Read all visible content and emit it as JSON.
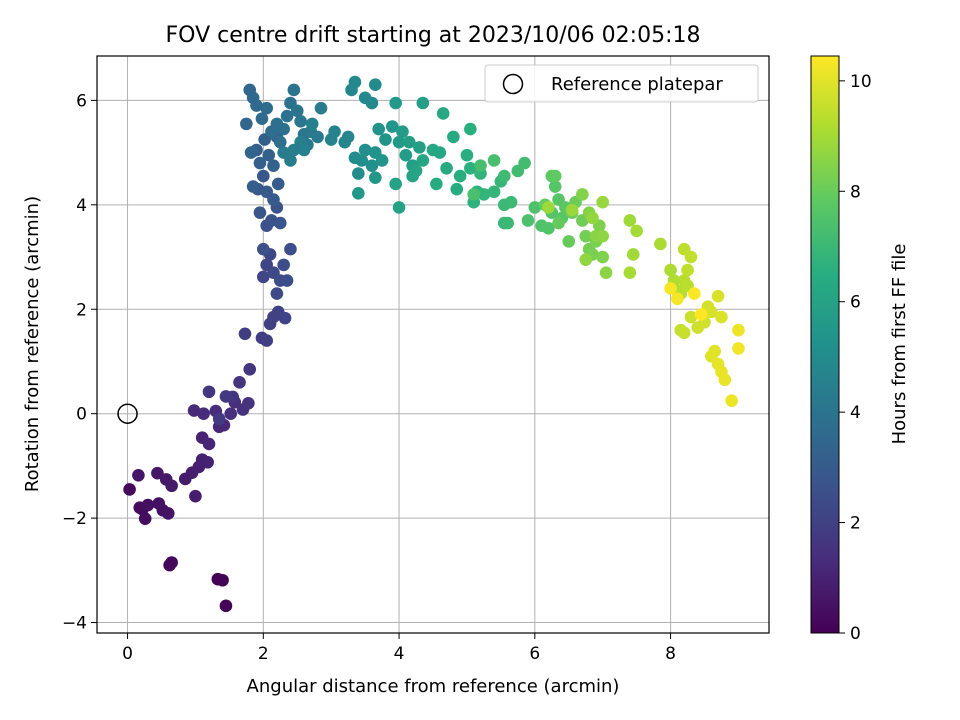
{
  "chart_data": {
    "type": "scatter",
    "title": "FOV centre drift starting at 2023/10/06 02:05:18",
    "xlabel": "Angular distance from reference (arcmin)",
    "ylabel": "Rotation from reference (arcmin)",
    "xlim": [
      -0.45,
      9.45
    ],
    "ylim": [
      -4.2,
      6.85
    ],
    "xticks": [
      0,
      2,
      4,
      6,
      8
    ],
    "yticks": [
      -4,
      -2,
      0,
      2,
      4,
      6
    ],
    "xtick_labels": [
      "0",
      "2",
      "4",
      "6",
      "8"
    ],
    "ytick_labels": [
      "−4",
      "−2",
      "0",
      "2",
      "4",
      "6"
    ],
    "grid": true,
    "legend": {
      "location": "upper-right",
      "entries": [
        "Reference platepar"
      ]
    },
    "reference_point": {
      "x": 0,
      "y": 0,
      "marker": "open-circle"
    },
    "colorbar": {
      "label": "Hours from first FF file",
      "colormap": "viridis",
      "range": [
        0,
        10.45
      ],
      "ticks": [
        0,
        2,
        4,
        6,
        8,
        10
      ],
      "tick_labels": [
        "0",
        "2",
        "4",
        "6",
        "8",
        "10"
      ]
    },
    "series": [
      {
        "points": [
          [
            1.33,
            -3.17
          ],
          [
            1.4,
            -3.19
          ],
          [
            1.45,
            -3.68
          ],
          [
            0.62,
            -2.9
          ],
          [
            0.65,
            -2.85
          ],
          [
            0.03,
            -1.45
          ],
          [
            0.18,
            -1.8
          ],
          [
            0.22,
            -1.83
          ],
          [
            0.26,
            -2.01
          ],
          [
            0.3,
            -1.75
          ],
          [
            0.46,
            -1.72
          ],
          [
            0.52,
            -1.85
          ],
          [
            0.6,
            -1.91
          ],
          [
            0.16,
            -1.18
          ],
          [
            0.44,
            -1.14
          ],
          [
            0.57,
            -1.26
          ],
          [
            0.65,
            -1.38
          ],
          [
            0.85,
            -1.25
          ],
          [
            0.95,
            -1.13
          ],
          [
            1.0,
            -1.58
          ],
          [
            1.05,
            -1.02
          ],
          [
            1.1,
            -0.88
          ],
          [
            1.18,
            -0.93
          ],
          [
            1.1,
            -0.46
          ],
          [
            1.2,
            -0.58
          ],
          [
            1.35,
            -0.25
          ],
          [
            1.42,
            -0.22
          ],
          [
            0.98,
            0.06
          ],
          [
            1.12,
            0.0
          ],
          [
            1.3,
            0.05
          ],
          [
            1.52,
            0.0
          ],
          [
            1.58,
            0.22
          ],
          [
            1.7,
            0.08
          ],
          [
            1.78,
            0.2
          ],
          [
            1.55,
            0.32
          ],
          [
            1.65,
            0.6
          ],
          [
            1.8,
            0.85
          ],
          [
            1.2,
            0.42
          ],
          [
            1.45,
            0.33
          ],
          [
            1.35,
            -0.1
          ],
          [
            1.73,
            1.53
          ],
          [
            1.98,
            1.45
          ],
          [
            2.05,
            1.4
          ],
          [
            2.1,
            1.72
          ],
          [
            2.15,
            1.85
          ],
          [
            2.22,
            1.95
          ],
          [
            2.32,
            1.83
          ],
          [
            2.0,
            2.62
          ],
          [
            2.05,
            2.85
          ],
          [
            2.1,
            3.05
          ],
          [
            2.15,
            2.7
          ],
          [
            2.2,
            2.3
          ],
          [
            2.25,
            2.55
          ],
          [
            2.3,
            2.85
          ],
          [
            2.35,
            2.55
          ],
          [
            2.4,
            3.15
          ],
          [
            2.0,
            3.15
          ],
          [
            2.05,
            3.6
          ],
          [
            2.12,
            3.7
          ],
          [
            2.2,
            3.95
          ],
          [
            2.25,
            3.65
          ],
          [
            1.95,
            3.85
          ],
          [
            1.92,
            4.3
          ],
          [
            2.0,
            4.55
          ],
          [
            2.05,
            4.25
          ],
          [
            2.15,
            4.1
          ],
          [
            2.22,
            4.4
          ],
          [
            1.85,
            4.35
          ],
          [
            1.9,
            5.05
          ],
          [
            1.95,
            4.8
          ],
          [
            2.02,
            5.25
          ],
          [
            2.08,
            4.95
          ],
          [
            2.15,
            4.75
          ],
          [
            2.2,
            5.3
          ],
          [
            1.82,
            5.0
          ],
          [
            1.75,
            5.55
          ],
          [
            1.8,
            6.2
          ],
          [
            1.85,
            6.05
          ],
          [
            1.9,
            5.9
          ],
          [
            1.98,
            5.65
          ],
          [
            2.05,
            5.85
          ],
          [
            2.12,
            5.4
          ],
          [
            2.2,
            5.55
          ],
          [
            2.25,
            5.2
          ],
          [
            2.3,
            5.45
          ],
          [
            2.35,
            5.7
          ],
          [
            2.4,
            5.95
          ],
          [
            2.45,
            6.2
          ],
          [
            2.5,
            5.8
          ],
          [
            2.55,
            5.6
          ],
          [
            2.6,
            5.35
          ],
          [
            2.65,
            5.15
          ],
          [
            2.7,
            5.4
          ],
          [
            2.8,
            5.3
          ],
          [
            2.85,
            5.85
          ],
          [
            2.3,
            5.0
          ],
          [
            2.4,
            4.85
          ],
          [
            2.45,
            5.05
          ],
          [
            2.55,
            5.2
          ],
          [
            2.6,
            5.05
          ],
          [
            2.72,
            5.55
          ],
          [
            3.0,
            5.25
          ],
          [
            3.05,
            5.4
          ],
          [
            3.2,
            5.2
          ],
          [
            3.25,
            5.3
          ],
          [
            3.3,
            6.2
          ],
          [
            3.35,
            6.35
          ],
          [
            3.5,
            6.05
          ],
          [
            3.6,
            5.95
          ],
          [
            3.65,
            6.3
          ],
          [
            3.35,
            4.9
          ],
          [
            3.4,
            4.6
          ],
          [
            3.45,
            4.85
          ],
          [
            3.5,
            5.05
          ],
          [
            3.6,
            4.75
          ],
          [
            3.65,
            5.0
          ],
          [
            3.7,
            5.45
          ],
          [
            3.75,
            4.85
          ],
          [
            3.8,
            5.25
          ],
          [
            3.9,
            5.5
          ],
          [
            3.4,
            4.22
          ],
          [
            3.65,
            4.52
          ],
          [
            3.95,
            5.95
          ],
          [
            4.0,
            5.2
          ],
          [
            4.05,
            5.4
          ],
          [
            4.1,
            4.95
          ],
          [
            4.15,
            5.2
          ],
          [
            4.2,
            4.75
          ],
          [
            4.3,
            5.1
          ],
          [
            4.35,
            5.95
          ],
          [
            3.95,
            4.4
          ],
          [
            4.0,
            3.95
          ],
          [
            4.2,
            4.55
          ],
          [
            4.25,
            4.65
          ],
          [
            4.35,
            4.85
          ],
          [
            4.5,
            5.05
          ],
          [
            4.6,
            5.0
          ],
          [
            4.65,
            5.75
          ],
          [
            4.7,
            4.7
          ],
          [
            4.8,
            5.3
          ],
          [
            4.55,
            4.4
          ],
          [
            4.85,
            4.3
          ],
          [
            4.9,
            4.55
          ],
          [
            5.0,
            4.95
          ],
          [
            5.05,
            5.45
          ],
          [
            5.05,
            4.7
          ],
          [
            5.1,
            4.05
          ],
          [
            5.15,
            4.25
          ],
          [
            5.2,
            4.6
          ],
          [
            5.25,
            4.2
          ],
          [
            5.4,
            4.25
          ],
          [
            5.5,
            4.45
          ],
          [
            5.55,
            3.65
          ],
          [
            5.55,
            4.0
          ],
          [
            5.6,
            3.65
          ],
          [
            5.65,
            4.05
          ],
          [
            5.55,
            4.55
          ],
          [
            5.75,
            4.65
          ],
          [
            5.85,
            4.8
          ],
          [
            5.2,
            4.75
          ],
          [
            5.4,
            4.85
          ],
          [
            5.1,
            4.2
          ],
          [
            5.9,
            3.7
          ],
          [
            6.0,
            3.95
          ],
          [
            6.1,
            3.6
          ],
          [
            6.2,
            3.55
          ],
          [
            6.25,
            3.85
          ],
          [
            6.3,
            4.35
          ],
          [
            6.35,
            4.1
          ],
          [
            6.4,
            3.75
          ],
          [
            6.45,
            3.95
          ],
          [
            6.25,
            4.55
          ],
          [
            6.3,
            4.55
          ],
          [
            6.15,
            4.0
          ],
          [
            6.35,
            3.65
          ],
          [
            6.5,
            3.3
          ],
          [
            6.55,
            3.85
          ],
          [
            6.6,
            4.05
          ],
          [
            6.7,
            3.7
          ],
          [
            6.75,
            3.4
          ],
          [
            6.8,
            3.15
          ],
          [
            6.85,
            3.05
          ],
          [
            6.9,
            3.3
          ],
          [
            6.95,
            3.6
          ],
          [
            7.0,
            3.0
          ],
          [
            6.7,
            4.2
          ],
          [
            6.8,
            3.85
          ],
          [
            6.9,
            3.4
          ],
          [
            7.05,
            2.7
          ],
          [
            7.0,
            3.4
          ],
          [
            6.75,
            2.95
          ],
          [
            6.85,
            3.75
          ],
          [
            7.0,
            4.05
          ],
          [
            6.55,
            3.9
          ],
          [
            6.2,
            3.95
          ],
          [
            7.4,
            3.7
          ],
          [
            7.45,
            3.05
          ],
          [
            7.5,
            3.5
          ],
          [
            7.4,
            2.7
          ],
          [
            7.85,
            3.25
          ],
          [
            8.0,
            2.75
          ],
          [
            8.05,
            2.55
          ],
          [
            8.1,
            2.35
          ],
          [
            8.15,
            2.3
          ],
          [
            8.2,
            2.55
          ],
          [
            8.25,
            2.45
          ],
          [
            8.2,
            3.15
          ],
          [
            8.25,
            2.75
          ],
          [
            8.3,
            3.0
          ],
          [
            8.15,
            1.6
          ],
          [
            8.2,
            1.55
          ],
          [
            8.3,
            1.85
          ],
          [
            8.4,
            1.65
          ],
          [
            8.5,
            1.75
          ],
          [
            8.55,
            2.05
          ],
          [
            8.6,
            1.95
          ],
          [
            8.7,
            2.25
          ],
          [
            8.75,
            1.85
          ],
          [
            8.6,
            1.1
          ],
          [
            8.65,
            1.2
          ],
          [
            8.7,
            0.95
          ],
          [
            8.75,
            0.8
          ],
          [
            8.8,
            0.65
          ],
          [
            8.9,
            0.25
          ],
          [
            9.0,
            1.6
          ],
          [
            9.0,
            1.25
          ],
          [
            8.1,
            2.2
          ],
          [
            8.0,
            2.4
          ],
          [
            8.35,
            2.3
          ],
          [
            8.45,
            1.9
          ]
        ]
      }
    ]
  }
}
